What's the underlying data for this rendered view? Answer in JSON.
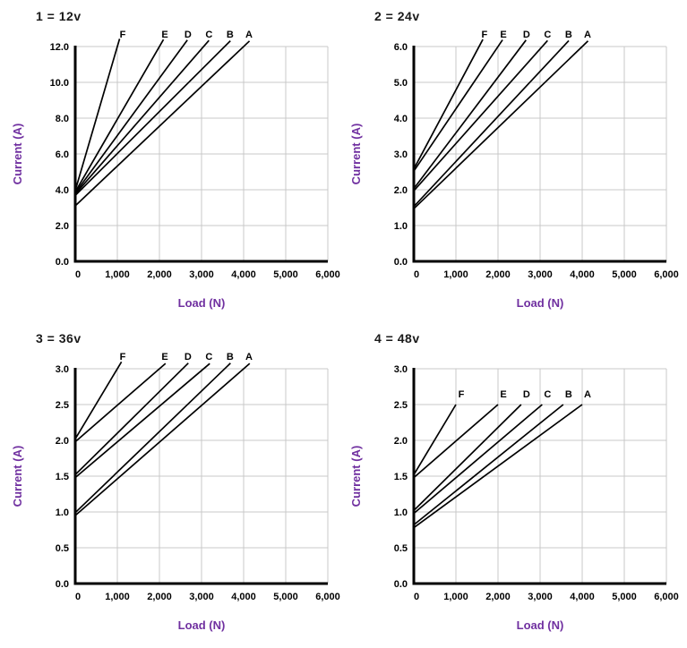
{
  "colors": {
    "axis_label": "#7030A0",
    "title": "#1a1a1a",
    "grid": "#c9c9c9",
    "axis": "#000000",
    "series_line": "#000000",
    "tick_text": "#000000"
  },
  "chart_data": [
    {
      "type": "line",
      "title": "1 = 12v",
      "xlabel": "Load (N)",
      "ylabel": "Current (A)",
      "xlim": [
        0,
        6000
      ],
      "ylim": [
        0,
        12
      ],
      "grid": true,
      "legend_position": "labels-at-line-tips",
      "xtick_labels": [
        "0",
        "1,000",
        "2,000",
        "3,000",
        "4,000",
        "5,000",
        "6,000"
      ],
      "ytick_labels": [
        "0.0",
        "2.0",
        "4.0",
        "6.0",
        "8.0",
        "10.0",
        "12.0"
      ],
      "series": [
        {
          "name": "F",
          "points": [
            [
              0,
              3.95
            ],
            [
              1000,
              12
            ]
          ]
        },
        {
          "name": "E",
          "points": [
            [
              0,
              3.88
            ],
            [
              2000,
              12
            ]
          ]
        },
        {
          "name": "D",
          "points": [
            [
              0,
              3.82
            ],
            [
              2550,
              12
            ]
          ]
        },
        {
          "name": "C",
          "points": [
            [
              0,
              3.76
            ],
            [
              3050,
              12
            ]
          ]
        },
        {
          "name": "B",
          "points": [
            [
              0,
              3.68
            ],
            [
              3550,
              12
            ]
          ]
        },
        {
          "name": "A",
          "points": [
            [
              0,
              3.1
            ],
            [
              4000,
              12
            ]
          ]
        }
      ]
    },
    {
      "type": "line",
      "title": "2 = 24v",
      "xlabel": "Load (N)",
      "ylabel": "Current (A)",
      "xlim": [
        0,
        6000
      ],
      "ylim": [
        0,
        6
      ],
      "grid": true,
      "legend_position": "labels-at-line-tips",
      "xtick_labels": [
        "0",
        "1,000",
        "2,000",
        "3,000",
        "4,000",
        "5,000",
        "6,000"
      ],
      "ytick_labels": [
        "0.0",
        "1.0",
        "2.0",
        "3.0",
        "4.0",
        "5.0",
        "6.0"
      ],
      "series": [
        {
          "name": "F",
          "points": [
            [
              0,
              2.58
            ],
            [
              1550,
              6
            ]
          ]
        },
        {
          "name": "E",
          "points": [
            [
              0,
              2.52
            ],
            [
              2000,
              6
            ]
          ]
        },
        {
          "name": "D",
          "points": [
            [
              0,
              2.03
            ],
            [
              2550,
              6
            ]
          ]
        },
        {
          "name": "C",
          "points": [
            [
              0,
              1.97
            ],
            [
              3050,
              6
            ]
          ]
        },
        {
          "name": "B",
          "points": [
            [
              0,
              1.53
            ],
            [
              3550,
              6
            ]
          ]
        },
        {
          "name": "A",
          "points": [
            [
              0,
              1.47
            ],
            [
              4000,
              6
            ]
          ]
        }
      ]
    },
    {
      "type": "line",
      "title": "3 = 36v",
      "xlabel": "Load (N)",
      "ylabel": "Current (A)",
      "xlim": [
        0,
        6000
      ],
      "ylim": [
        0,
        3
      ],
      "grid": true,
      "legend_position": "labels-at-line-tips",
      "xtick_labels": [
        "0",
        "1,000",
        "2,000",
        "3,000",
        "4,000",
        "5,000",
        "6,000"
      ],
      "ytick_labels": [
        "0.0",
        "0.5",
        "1.0",
        "1.5",
        "2.0",
        "2.5",
        "3.0"
      ],
      "series": [
        {
          "name": "F",
          "points": [
            [
              0,
              2.02
            ],
            [
              1000,
              3
            ]
          ]
        },
        {
          "name": "E",
          "points": [
            [
              0,
              1.98
            ],
            [
              2000,
              3
            ]
          ]
        },
        {
          "name": "D",
          "points": [
            [
              0,
              1.52
            ],
            [
              2550,
              3
            ]
          ]
        },
        {
          "name": "C",
          "points": [
            [
              0,
              1.48
            ],
            [
              3050,
              3
            ]
          ]
        },
        {
          "name": "B",
          "points": [
            [
              0,
              0.99
            ],
            [
              3550,
              3
            ]
          ]
        },
        {
          "name": "A",
          "points": [
            [
              0,
              0.95
            ],
            [
              4000,
              3
            ]
          ]
        }
      ]
    },
    {
      "type": "line",
      "title": "4 = 48v",
      "xlabel": "Load (N)",
      "ylabel": "Current (A)",
      "xlim": [
        0,
        6000
      ],
      "ylim": [
        0,
        3
      ],
      "grid": true,
      "legend_position": "labels-at-line-tips",
      "xtick_labels": [
        "0",
        "1,000",
        "2,000",
        "3,000",
        "4,000",
        "5,000",
        "6,000"
      ],
      "ytick_labels": [
        "0.0",
        "0.5",
        "1.0",
        "1.5",
        "2.0",
        "2.5",
        "3.0"
      ],
      "series": [
        {
          "name": "F",
          "points": [
            [
              0,
              1.52
            ],
            [
              1000,
              2.5
            ]
          ]
        },
        {
          "name": "E",
          "points": [
            [
              0,
              1.48
            ],
            [
              2000,
              2.5
            ]
          ]
        },
        {
          "name": "D",
          "points": [
            [
              0,
              1.02
            ],
            [
              2550,
              2.5
            ]
          ]
        },
        {
          "name": "C",
          "points": [
            [
              0,
              0.98
            ],
            [
              3050,
              2.5
            ]
          ]
        },
        {
          "name": "B",
          "points": [
            [
              0,
              0.82
            ],
            [
              3550,
              2.5
            ]
          ]
        },
        {
          "name": "A",
          "points": [
            [
              0,
              0.78
            ],
            [
              4000,
              2.5
            ]
          ]
        }
      ]
    }
  ]
}
